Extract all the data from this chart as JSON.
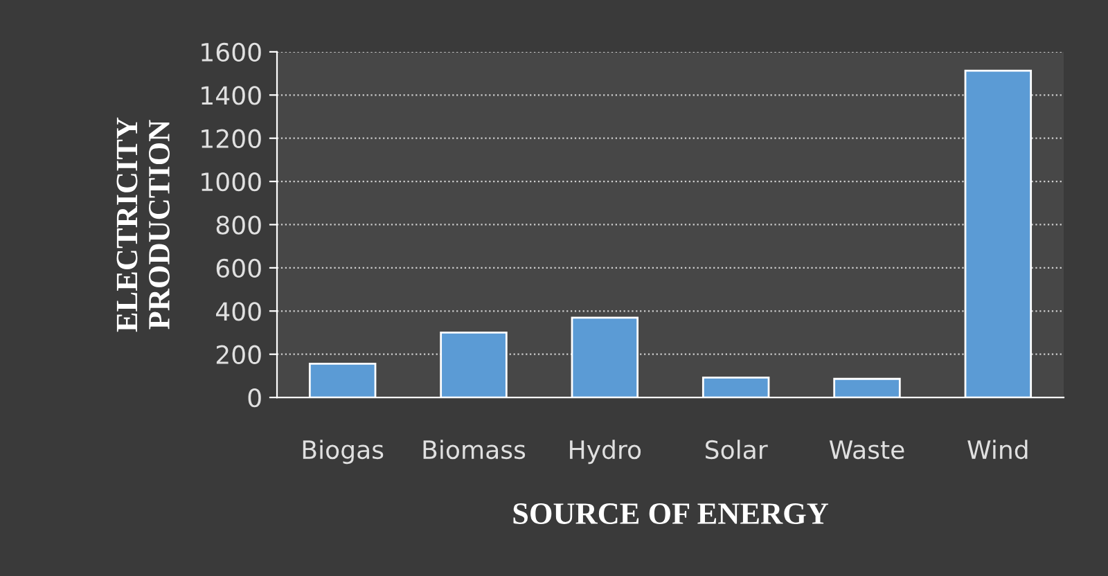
{
  "chart_data": {
    "type": "bar",
    "xlabel": "SOURCE OF ENERGY",
    "ylabel": "ELECTRICITY\nPRODUCTION",
    "categories": [
      "Biogas",
      "Biomass",
      "Hydro",
      "Solar",
      "Waste",
      "Wind"
    ],
    "values": [
      156,
      300,
      369,
      92,
      86,
      1513
    ],
    "color": "#5b9bd5",
    "ylim": [
      0,
      1600
    ],
    "yticks": [
      0,
      200,
      400,
      600,
      800,
      1000,
      1200,
      1400,
      1600
    ],
    "grid": "y",
    "legend": false
  }
}
